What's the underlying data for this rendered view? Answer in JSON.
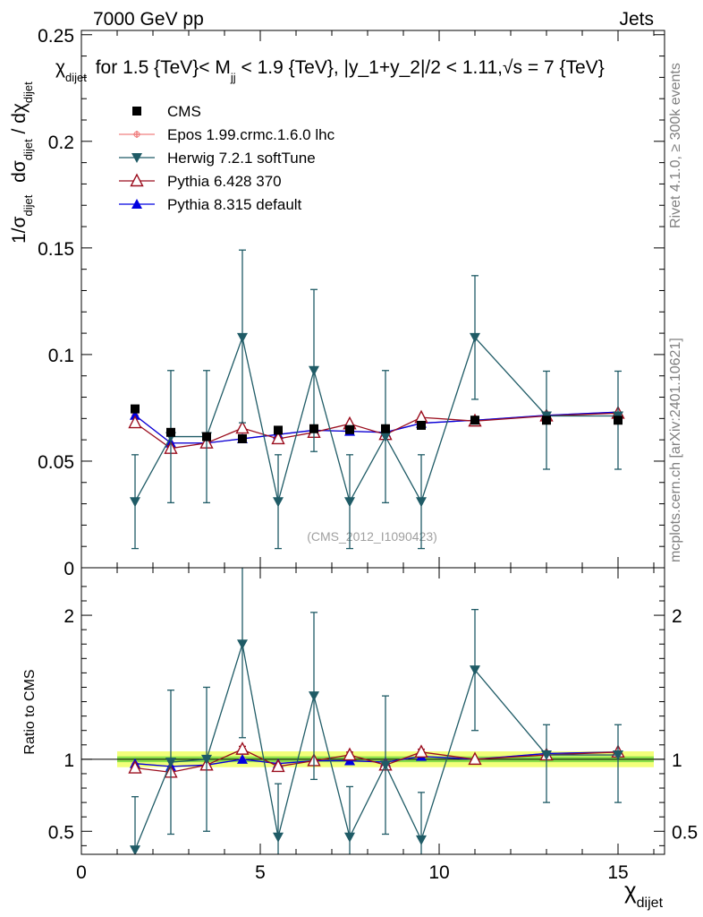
{
  "header": {
    "energy_label": "7000 GeV pp",
    "category_label": "Jets",
    "side_rivet": "Rivet 4.1.0, ≥ 300k events",
    "side_mcplots": "mcplots.cern.ch [arXiv:2401.10621]",
    "analysis_tag": "(CMS_2012_I1090423)"
  },
  "colors": {
    "cms": "#000000",
    "epos": "#f08080",
    "herwig": "#1f5b66",
    "pythia6": "#9b0e1e",
    "pythia8": "#0000e0",
    "band_inner": "#8be04a",
    "band_outer": "#f2ff7a"
  },
  "chart_data": [
    {
      "type": "scatter",
      "panel": "main",
      "title": "χ_dijet for 1.5 {TeV}< M_jj < 1.9 {TeV}, |y_1+y_2|/2 < 1.11,√s = 7 {TeV}",
      "title_parts": {
        "lead": "χ",
        "lead_sub": "dijet",
        "mid": " for 1.5 {TeV}< M",
        "mid_sub": "jj",
        "tail": " < 1.9 {TeV}, |y_1+y_2|/2 < 1.11,",
        "sqrt": "√",
        "s_tail": "s = 7 {TeV}"
      },
      "ylabel": "1/σ_dijet dσ_dijet / dχ_dijet",
      "ylabel_parts": {
        "a": "1/σ",
        "a_sub": "dijet",
        "b": " dσ",
        "b_sub": "dijet",
        "c": " / dχ",
        "c_sub": "dijet"
      },
      "xlabel": "χ_dijet",
      "xlim": [
        0,
        16.3
      ],
      "ylim": [
        0,
        0.252
      ],
      "y_ticks": [
        0,
        0.05,
        0.1,
        0.15,
        0.2,
        0.25
      ],
      "y_tick_labels": [
        "0",
        "0.05",
        "0.1",
        "0.15",
        "0.2",
        "0.25"
      ],
      "legend": [
        {
          "key": "cms",
          "label": "CMS"
        },
        {
          "key": "epos",
          "label": "Epos 1.99.crmc.1.6.0 lhc"
        },
        {
          "key": "herwig",
          "label": "Herwig 7.2.1 softTune"
        },
        {
          "key": "pythia6",
          "label": "Pythia 6.428 370"
        },
        {
          "key": "pythia8",
          "label": "Pythia 8.315 default"
        }
      ],
      "x_edges": [
        1,
        2,
        3,
        4,
        5,
        6,
        7,
        8,
        9,
        10,
        12,
        14,
        16
      ],
      "x_centers": [
        1.5,
        2.5,
        3.5,
        4.5,
        5.5,
        6.5,
        7.5,
        8.5,
        9.5,
        11,
        13,
        15
      ],
      "series": [
        {
          "key": "cms",
          "name": "CMS",
          "marker": "square",
          "values": [
            0.0745,
            0.0635,
            0.0615,
            0.0605,
            0.0645,
            0.0652,
            0.0648,
            0.0652,
            0.0668,
            0.0692,
            0.0692,
            0.0692
          ]
        },
        {
          "key": "herwig",
          "name": "Herwig 7.2.1 softTune",
          "marker": "tri-down",
          "values": [
            0.031,
            0.0615,
            0.0615,
            0.108,
            0.031,
            0.0925,
            0.031,
            0.0615,
            0.031,
            0.108,
            0.0712,
            0.0712
          ],
          "err_low": [
            0.022,
            0.031,
            0.031,
            0.04,
            0.022,
            0.038,
            0.022,
            0.031,
            0.022,
            0.029,
            0.025,
            0.025
          ],
          "err_high": [
            0.022,
            0.031,
            0.031,
            0.041,
            0.022,
            0.038,
            0.022,
            0.031,
            0.022,
            0.029,
            0.021,
            0.021
          ]
        },
        {
          "key": "pythia6",
          "name": "Pythia 6.428 370",
          "marker": "tri-up-open",
          "values": [
            0.068,
            0.056,
            0.0585,
            0.0655,
            0.0605,
            0.0635,
            0.0675,
            0.0625,
            0.0705,
            0.0688,
            0.0712,
            0.0725
          ]
        },
        {
          "key": "pythia8",
          "name": "Pythia 8.315 default",
          "marker": "tri-up",
          "values": [
            0.0715,
            0.0585,
            0.0585,
            0.0605,
            0.0625,
            0.0645,
            0.064,
            0.0635,
            0.0678,
            0.0692,
            0.0715,
            0.073
          ]
        },
        {
          "key": "epos",
          "name": "Epos 1.99.crmc.1.6.0 lhc",
          "marker": "cross",
          "values": [
            0.0715,
            0.0585,
            0.0585,
            0.0605,
            0.0625,
            0.0645,
            0.064,
            0.0635,
            0.0678,
            0.0692,
            0.0715,
            0.073
          ]
        }
      ]
    },
    {
      "type": "scatter",
      "panel": "ratio",
      "ylabel": "Ratio to CMS",
      "xlabel": "χ_dijet",
      "xlim": [
        0,
        16.3
      ],
      "ylim": [
        0.34,
        2.33
      ],
      "x_ticks": [
        0,
        5,
        10,
        15
      ],
      "x_tick_labels": [
        "0",
        "5",
        "10",
        "15"
      ],
      "y_ticks": [
        0.5,
        1,
        2
      ],
      "y_tick_labels": [
        "0.5",
        "1",
        "2"
      ],
      "band_inner_halfwidth": 0.02,
      "band_outer_halfwidth": 0.055,
      "series": [
        {
          "key": "herwig",
          "values": [
            0.37,
            0.98,
            1.0,
            1.8,
            0.46,
            1.44,
            0.46,
            0.96,
            0.44,
            1.62,
            1.03,
            1.03
          ],
          "err_low": [
            0.37,
            0.5,
            0.5,
            0.65,
            0.37,
            0.58,
            0.35,
            0.48,
            0.33,
            0.42,
            0.33,
            0.33
          ],
          "err_high": [
            0.37,
            0.5,
            0.5,
            0.62,
            0.37,
            0.58,
            0.35,
            0.48,
            0.33,
            0.42,
            0.21,
            0.21
          ]
        },
        {
          "key": "pythia6",
          "values": [
            0.94,
            0.91,
            0.96,
            1.07,
            0.95,
            0.99,
            1.03,
            0.96,
            1.05,
            1.0,
            1.03,
            1.05
          ],
          "err_low": [
            0,
            0,
            0,
            0.02,
            0,
            0,
            0.02,
            0,
            0.02,
            0,
            0,
            0
          ],
          "err_high": [
            0,
            0,
            0,
            0.02,
            0,
            0,
            0.02,
            0,
            0.02,
            0,
            0,
            0
          ]
        },
        {
          "key": "pythia8",
          "values": [
            0.97,
            0.95,
            0.96,
            1.0,
            0.97,
            0.99,
            0.99,
            0.98,
            1.02,
            1.0,
            1.04,
            1.05
          ]
        },
        {
          "key": "epos",
          "values": [
            0.97,
            0.95,
            0.96,
            1.0,
            0.97,
            0.99,
            0.99,
            0.98,
            1.02,
            1.0,
            1.04,
            1.05
          ]
        }
      ]
    }
  ]
}
